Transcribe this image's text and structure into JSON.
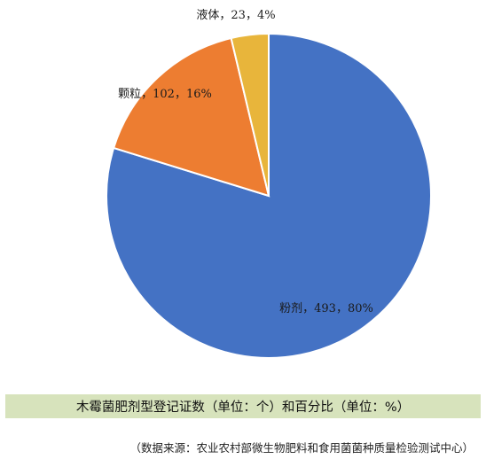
{
  "chart_data": {
    "type": "pie",
    "slices": [
      {
        "name": "粉剂",
        "value": 493,
        "percent": 80,
        "label": "粉剂，493，80%",
        "color": "#4472c4"
      },
      {
        "name": "颗粒",
        "value": 102,
        "percent": 16,
        "label": "颗粒，102，16%",
        "color": "#ed7d31"
      },
      {
        "name": "液体",
        "value": 23,
        "percent": 4,
        "label": "液体，23，4%",
        "color": "#e8b53b"
      }
    ],
    "legend": false
  },
  "caption": "木霉菌肥剂型登记证数（单位：个）和百分比（单位：%）",
  "source": "（数据来源：农业农村部微生物肥料和食用菌菌种质量检验测试中心）"
}
